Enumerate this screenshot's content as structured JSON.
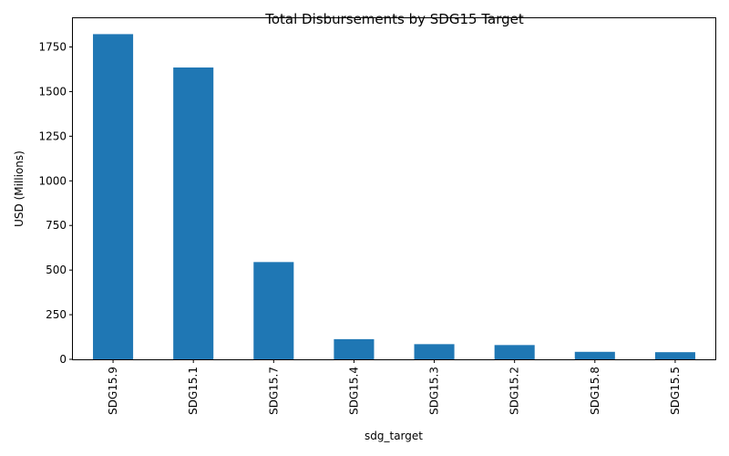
{
  "chart_data": {
    "type": "bar",
    "title": "Total Disbursements by SDG15 Target",
    "xlabel": "sdg_target",
    "ylabel": "USD (Millions)",
    "categories": [
      "SDG15.9",
      "SDG15.1",
      "SDG15.7",
      "SDG15.4",
      "SDG15.3",
      "SDG15.2",
      "SDG15.8",
      "SDG15.5"
    ],
    "values": [
      1822,
      1635,
      545,
      113,
      85,
      80,
      42,
      40
    ],
    "ylim": [
      0,
      1911
    ],
    "yticks": [
      0,
      250,
      500,
      750,
      1000,
      1250,
      1500,
      1750
    ],
    "bar_color": "#1f77b4",
    "grid": false,
    "legend": false
  }
}
